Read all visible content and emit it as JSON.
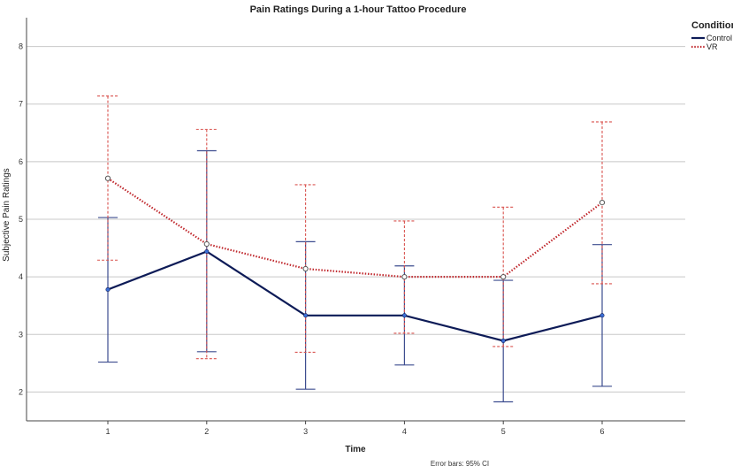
{
  "chart_data": {
    "type": "line",
    "title": "Pain Ratings During a 1-hour Tattoo Procedure",
    "xlabel": "Time",
    "ylabel": "Subjective Pain Ratings",
    "categories": [
      "1",
      "2",
      "3",
      "4",
      "5",
      "6"
    ],
    "yticks": [
      "2",
      "3",
      "4",
      "5",
      "6",
      "7",
      "8"
    ],
    "ylim": [
      1.5,
      8.5
    ],
    "grid": true,
    "legend": {
      "title": "Condition",
      "position": "top-right"
    },
    "note": "Error bars: 95% CI",
    "series": [
      {
        "name": "Control",
        "color": "#0d1b57",
        "style": "solid",
        "values": [
          3.78,
          4.44,
          3.33,
          3.33,
          2.89,
          3.33
        ],
        "ci_low": [
          2.52,
          2.7,
          2.05,
          2.47,
          1.83,
          2.1
        ],
        "ci_high": [
          5.03,
          6.19,
          4.61,
          4.19,
          3.94,
          4.56
        ]
      },
      {
        "name": "VR",
        "color": "#c0282d",
        "style": "dotted",
        "values": [
          5.71,
          4.57,
          4.14,
          4.0,
          4.0,
          5.29
        ],
        "ci_low": [
          4.29,
          2.58,
          2.69,
          3.02,
          2.79,
          3.88
        ],
        "ci_high": [
          7.14,
          6.56,
          5.6,
          4.97,
          5.21,
          6.69
        ]
      }
    ]
  }
}
